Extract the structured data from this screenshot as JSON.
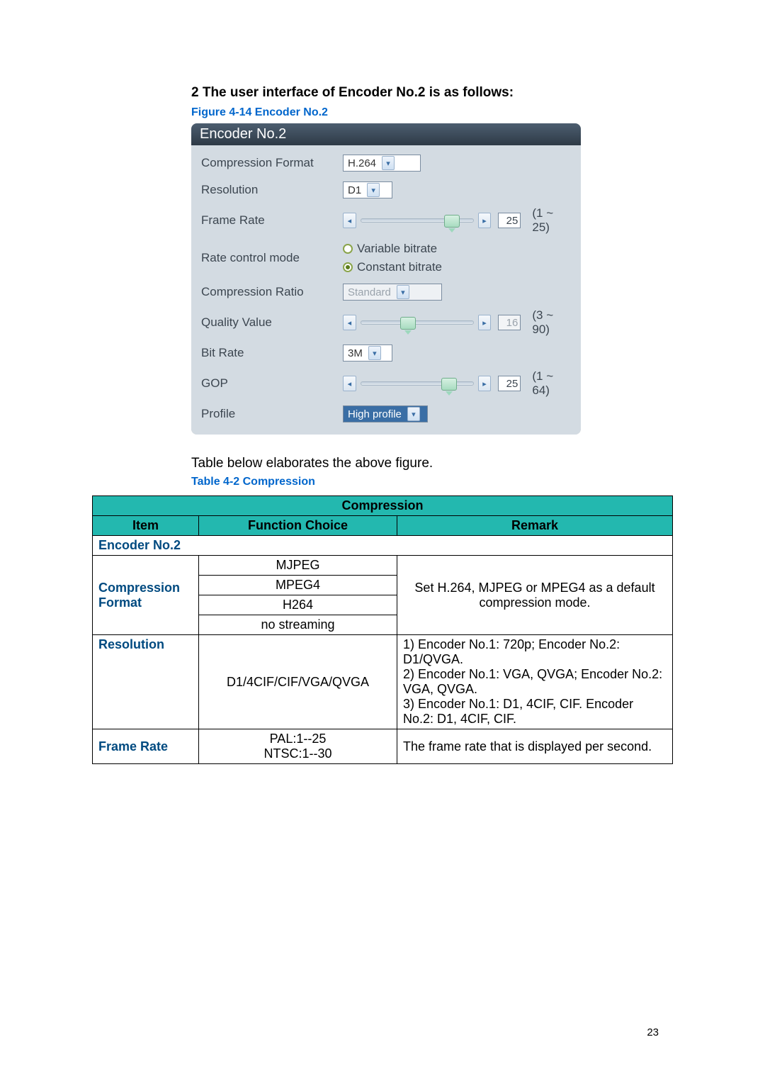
{
  "heading": "2 The user interface of Encoder No.2 is as follows:",
  "figure_caption": "Figure 4-14 Encoder No.2",
  "panel": {
    "title": "Encoder No.2",
    "rows": {
      "compression_format": {
        "label": "Compression Format",
        "value": "H.264"
      },
      "resolution": {
        "label": "Resolution",
        "value": "D1"
      },
      "frame_rate": {
        "label": "Frame Rate",
        "value": "25",
        "range": "(1 ~ 25)",
        "thumb_pct": 85
      },
      "rate_control": {
        "label": "Rate control mode",
        "opt1": "Variable bitrate",
        "opt2": "Constant bitrate",
        "selected": 2
      },
      "compression_ratio": {
        "label": "Compression Ratio",
        "value": "Standard"
      },
      "quality_value": {
        "label": "Quality Value",
        "value": "16",
        "range": "(3 ~ 90)",
        "thumb_pct": 40,
        "disabled": true
      },
      "bit_rate": {
        "label": "Bit Rate",
        "value": "3M"
      },
      "gop": {
        "label": "GOP",
        "value": "25",
        "range": "(1 ~ 64)",
        "thumb_pct": 82
      },
      "profile": {
        "label": "Profile",
        "value": "High profile"
      }
    }
  },
  "intermediate_text": "Table below elaborates the above figure.",
  "table_caption": "Table 4-2 Compression",
  "table": {
    "title": "Compression",
    "columns": [
      "Item",
      "Function Choice",
      "Remark"
    ],
    "section": "Encoder No.2",
    "rows": [
      {
        "item": "Compression Format",
        "choices": [
          "MJPEG",
          "MPEG4",
          "H264",
          "no streaming"
        ],
        "remark": "Set H.264, MJPEG or MPEG4 as a default compression mode.",
        "remark_center": true
      },
      {
        "item": "Resolution",
        "choices": [
          "D1/4CIF/CIF/VGA/QVGA"
        ],
        "remark": "1) Encoder No.1: 720p; Encoder No.2: D1/QVGA.\n2) Encoder No.1: VGA, QVGA; Encoder No.2: VGA, QVGA.\n3) Encoder No.1: D1, 4CIF, CIF. Encoder No.2: D1, 4CIF, CIF."
      },
      {
        "item": "Frame Rate",
        "choices": [
          "PAL:1--25\nNTSC:1--30"
        ],
        "remark": "The frame rate that is displayed per second."
      }
    ]
  },
  "page_number": "23"
}
